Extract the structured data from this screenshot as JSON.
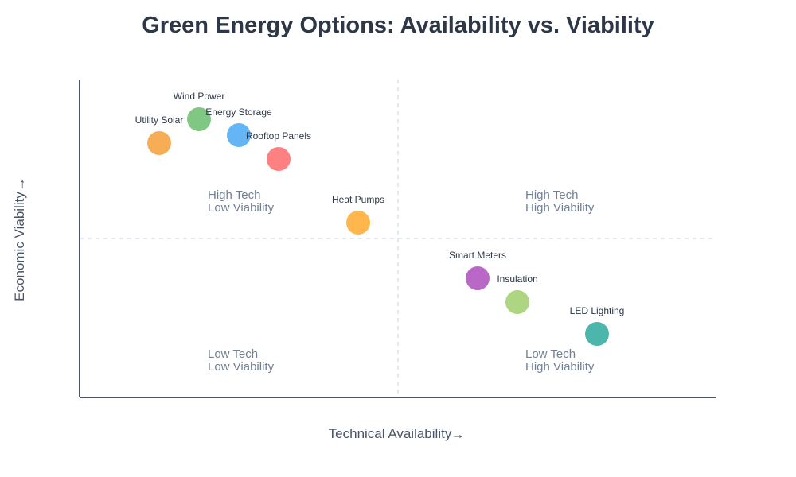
{
  "chart_data": {
    "type": "scatter",
    "title": "Green Energy Options: Availability vs. Viability",
    "xlabel": "Technical Availability",
    "ylabel": "Economic Viability",
    "axis_arrow_x": "→",
    "axis_arrow_y": "→",
    "xlim": [
      0,
      1
    ],
    "ylim": [
      0,
      1
    ],
    "grid": false,
    "quadrant_divider": {
      "x": 0.5,
      "y": 0.5
    },
    "quadrants": {
      "top_left": [
        "High Tech",
        "Low Viability"
      ],
      "top_right": [
        "High Tech",
        "High Viability"
      ],
      "bottom_left": [
        "Low Tech",
        "Low Viability"
      ],
      "bottom_right": [
        "Low Tech",
        "High Viability"
      ]
    },
    "points": [
      {
        "label": "Utility Solar",
        "x": 0.125,
        "y": 0.8,
        "color": "#F6AD55"
      },
      {
        "label": "Wind Power",
        "x": 0.1875,
        "y": 0.875,
        "color": "#81C784"
      },
      {
        "label": "Energy Storage",
        "x": 0.25,
        "y": 0.825,
        "color": "#64B5F6"
      },
      {
        "label": "Rooftop Panels",
        "x": 0.3125,
        "y": 0.75,
        "color": "#FF8080"
      },
      {
        "label": "Heat Pumps",
        "x": 0.4375,
        "y": 0.55,
        "color": "#FFB74D"
      },
      {
        "label": "Smart Meters",
        "x": 0.625,
        "y": 0.375,
        "color": "#BA68C8"
      },
      {
        "label": "Insulation",
        "x": 0.6875,
        "y": 0.3,
        "color": "#AED581"
      },
      {
        "label": "LED Lighting",
        "x": 0.8125,
        "y": 0.2,
        "color": "#4DB6AC"
      }
    ]
  }
}
